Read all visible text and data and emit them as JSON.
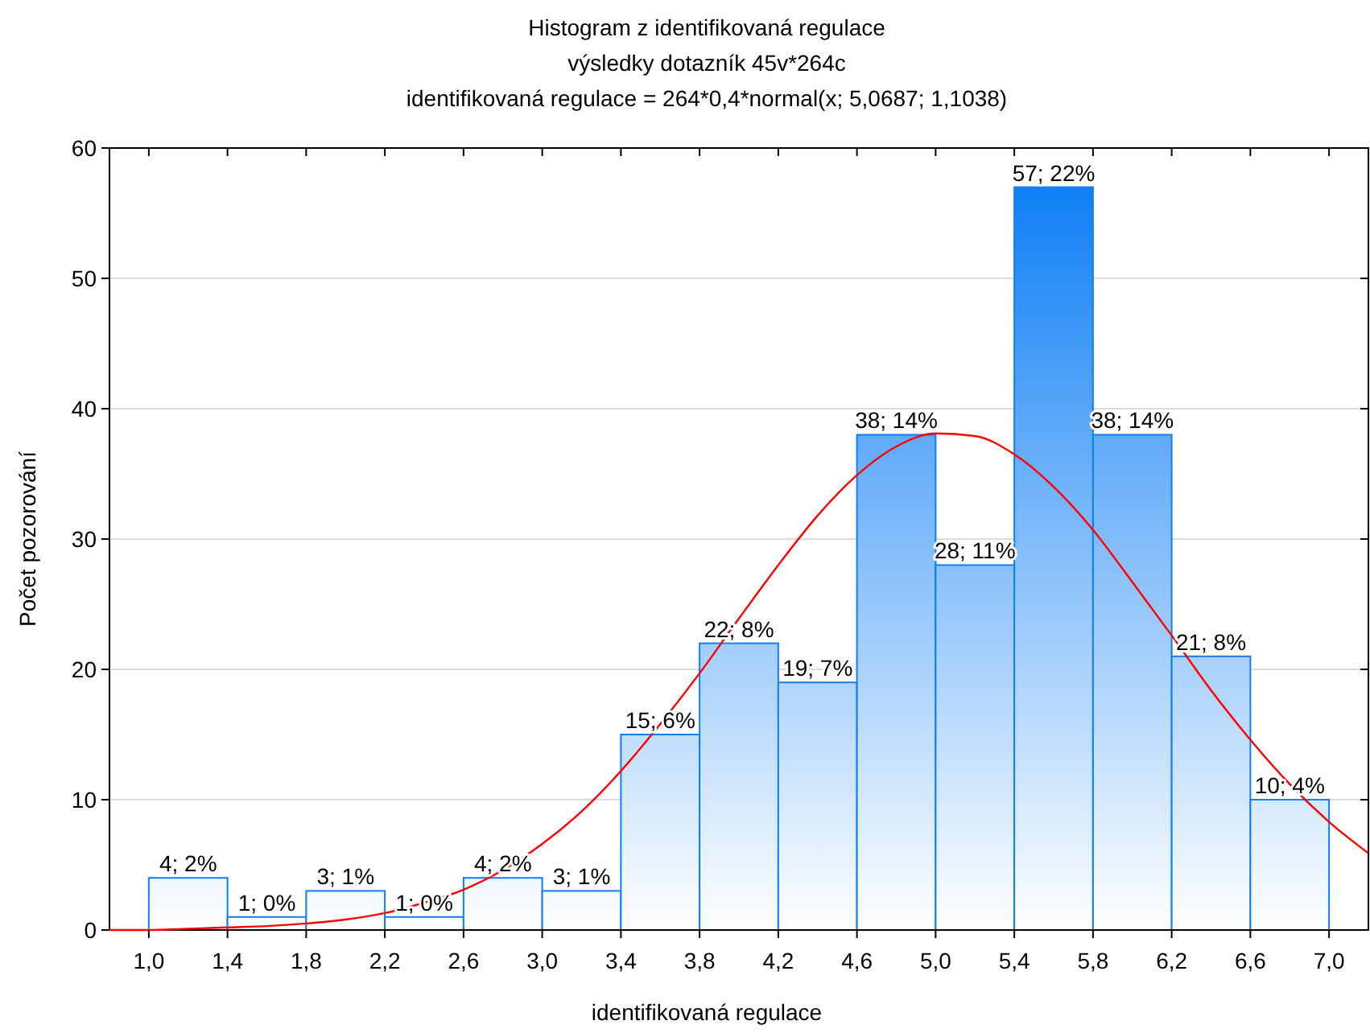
{
  "chart_data": {
    "type": "histogram",
    "title": "Histogram z identifikovaná regulace",
    "subtitle": "výsledky dotazník 45v*264c",
    "annotations": [
      "identifikovaná regulace = 264*0,4*normal(x; 5,0687; 1,1038)"
    ],
    "xlabel": "identifikovaná regulace",
    "ylabel": "Počet pozorování",
    "bins": [
      1.0,
      1.4,
      1.8,
      2.2,
      2.6,
      3.0,
      3.4,
      3.8,
      4.2,
      4.6,
      5.0,
      5.4,
      5.8,
      6.2,
      6.6,
      7.0
    ],
    "values": [
      4,
      1,
      3,
      1,
      4,
      3,
      15,
      22,
      19,
      38,
      28,
      57,
      38,
      21,
      10
    ],
    "value_labels": [
      "4; 2%",
      "1; 0%",
      "3; 1%",
      "1; 0%",
      "4; 2%",
      "3; 1%",
      "15; 6%",
      "22; 8%",
      "19; 7%",
      "38; 14%",
      "28; 11%",
      "57; 22%",
      "38; 14%",
      "21; 8%",
      "10; 4%"
    ],
    "color": "#0f7ff5",
    "series": [
      {
        "type": "line",
        "color": "#ff0000",
        "x": [
          0.8,
          1.0,
          1.2,
          1.4,
          1.6,
          1.8,
          2.0,
          2.2,
          2.4,
          2.6,
          2.8,
          3.0,
          3.2,
          3.4,
          3.6,
          3.8,
          4.0,
          4.2,
          4.4,
          4.6,
          4.8,
          5.0,
          5.2,
          5.4,
          5.6,
          5.8,
          6.0,
          6.2,
          6.4,
          6.6,
          6.8,
          7.0,
          7.2
        ],
        "values": [
          0.0,
          0.0,
          0.1,
          0.2,
          0.3,
          0.5,
          0.8,
          1.3,
          2.1,
          3.1,
          4.6,
          6.6,
          9.1,
          12.2,
          15.8,
          19.7,
          23.9,
          28.0,
          31.8,
          34.9,
          37.1,
          38.1,
          37.9,
          36.5,
          34.0,
          30.7,
          26.7,
          22.6,
          18.4,
          14.6,
          11.2,
          8.3,
          5.9
        ]
      }
    ],
    "xlim": [
      0.8,
      7.2
    ],
    "xticks": [
      {
        "value": 1.0,
        "label": "1,0"
      },
      {
        "value": 1.4,
        "label": "1,4"
      },
      {
        "value": 1.8,
        "label": "1,8"
      },
      {
        "value": 2.2,
        "label": "2,2"
      },
      {
        "value": 2.6,
        "label": "2,6"
      },
      {
        "value": 3.0,
        "label": "3,0"
      },
      {
        "value": 3.4,
        "label": "3,4"
      },
      {
        "value": 3.8,
        "label": "3,8"
      },
      {
        "value": 4.2,
        "label": "4,2"
      },
      {
        "value": 4.6,
        "label": "4,6"
      },
      {
        "value": 5.0,
        "label": "5,0"
      },
      {
        "value": 5.4,
        "label": "5,4"
      },
      {
        "value": 5.8,
        "label": "5,8"
      },
      {
        "value": 6.2,
        "label": "6,2"
      },
      {
        "value": 6.6,
        "label": "6,6"
      },
      {
        "value": 7.0,
        "label": "7,0"
      }
    ],
    "ylim": [
      0,
      60
    ],
    "yticks": [
      0,
      10,
      20,
      30,
      40,
      50,
      60
    ],
    "grid": "y"
  }
}
